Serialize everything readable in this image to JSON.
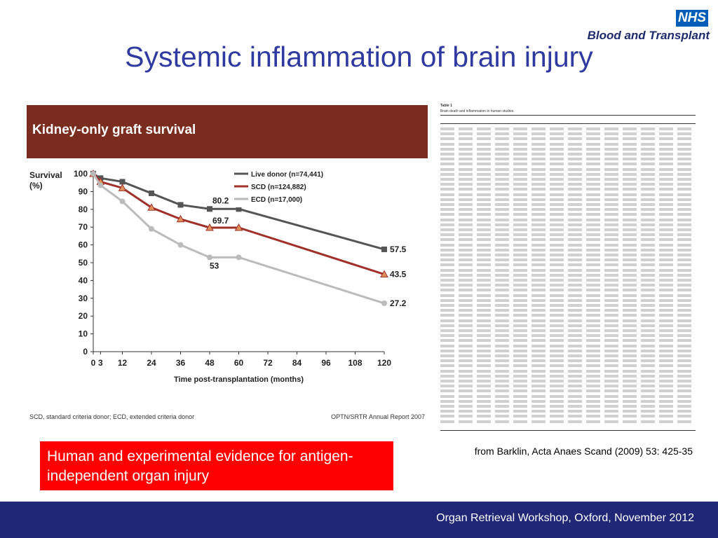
{
  "header": {
    "logo_text": "NHS",
    "logo_subtitle": "Blood and Transplant",
    "title": "Systemic inflammation of brain injury"
  },
  "chart_data": {
    "type": "line",
    "title": "Kidney-only graft survival",
    "ylabel": "Survival (%)",
    "xlabel": "Time post-transplantation (months)",
    "x_ticks": [
      0,
      3,
      12,
      24,
      36,
      48,
      60,
      72,
      84,
      96,
      108,
      120
    ],
    "y_ticks": [
      0,
      10,
      20,
      30,
      40,
      50,
      60,
      70,
      80,
      90,
      100
    ],
    "xlim": [
      0,
      120
    ],
    "ylim": [
      0,
      100
    ],
    "series": [
      {
        "name": "Live donor (n=74,441)",
        "color": "#555555",
        "marker": "square",
        "x": [
          0,
          3,
          12,
          24,
          36,
          48,
          60,
          120
        ],
        "y": [
          100,
          97.5,
          95.5,
          89,
          82.5,
          80.2,
          80.2,
          57.5
        ]
      },
      {
        "name": "SCD (n=124,882)",
        "color": "#a0302a",
        "marker": "triangle",
        "x": [
          0,
          3,
          12,
          24,
          36,
          48,
          60,
          120
        ],
        "y": [
          100,
          95.5,
          92,
          81,
          74.5,
          69.7,
          69.7,
          43.5
        ]
      },
      {
        "name": "ECD (n=17,000)",
        "color": "#bbbbbb",
        "marker": "circle",
        "x": [
          0,
          3,
          12,
          24,
          36,
          48,
          60,
          120
        ],
        "y": [
          100,
          93.5,
          84.5,
          69,
          60,
          53,
          53,
          27.2
        ]
      }
    ],
    "annotations": [
      {
        "text": "80.2",
        "x": 48,
        "y": 80.2
      },
      {
        "text": "69.7",
        "x": 48,
        "y": 69.7
      },
      {
        "text": "53",
        "x": 48,
        "y": 53
      },
      {
        "text": "57.5",
        "x": 120,
        "y": 57.5
      },
      {
        "text": "43.5",
        "x": 120,
        "y": 43.5
      },
      {
        "text": "27.2",
        "x": 120,
        "y": 27.2
      }
    ],
    "legend": "top-right",
    "footnote": "SCD, standard criteria donor; ECD, extended criteria donor",
    "source": "OPTN/SRTR Annual Report 2007"
  },
  "paper": {
    "table_label": "Table 1",
    "caption": "Brain death and inflammation in human studies."
  },
  "callout": {
    "text": "Human and experimental evidence for antigen-independent organ injury"
  },
  "citation": "from Barklin, Acta Anaes Scand (2009) 53: 425-35",
  "footer": "Organ Retrieval Workshop, Oxford, November 2012"
}
